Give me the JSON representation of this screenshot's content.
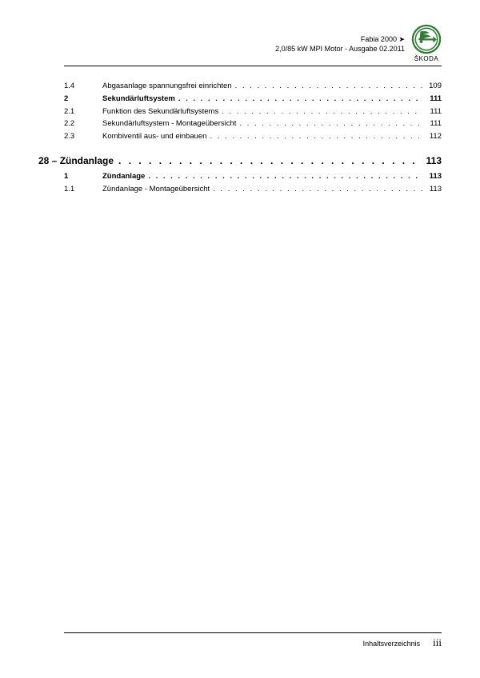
{
  "header": {
    "line1": "Fabia 2000 ➤",
    "line2": "2,0/85 kW MPI Motor - Ausgabe 02.2011",
    "brand_label": "ŠKODA"
  },
  "logo": {
    "outer_ring_color": "#2e7d32",
    "inner_bg_color": "#ffffff",
    "arrow_color": "#2e7d32"
  },
  "toc": {
    "entries": [
      {
        "num": "1.4",
        "title": "Abgasanlage spannungsfrei einrichten",
        "page": "109",
        "bold": false
      },
      {
        "num": "2",
        "title": "Sekundärluftsystem",
        "page": "111",
        "bold": true
      },
      {
        "num": "2.1",
        "title": "Funktion des Sekundärluftsystems",
        "page": "111",
        "bold": false
      },
      {
        "num": "2.2",
        "title": "Sekundärluftsystem - Montageübersicht",
        "page": "111",
        "bold": false
      },
      {
        "num": "2.3",
        "title": "Kombiventil aus- und einbauen",
        "page": "112",
        "bold": false
      }
    ],
    "chapter": {
      "title": "28 – Zündanlage",
      "page": "113"
    },
    "entries2": [
      {
        "num": "1",
        "title": "Zündanlage",
        "page": "113",
        "bold": true
      },
      {
        "num": "1.1",
        "title": "Zündanlage - Montageübersicht",
        "page": "113",
        "bold": false
      }
    ]
  },
  "footer": {
    "label": "Inhaltsverzeichnis",
    "pagenum": "iii"
  },
  "dotfill": ". . . . . . . . . . . . . . . . . . . . . . . . . . . . . . . . . . . . . . . . . . . . . . . . . . . . . . . . . . . . . . . . . . . . . . . . . . . . . . . . . . . . . . . . . . . . . . . . . . . ."
}
